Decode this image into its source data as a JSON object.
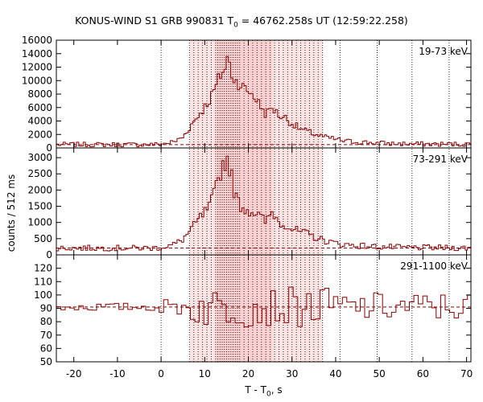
{
  "chart_data": {
    "type": "line",
    "title_main": "KONUS-WIND S1 GRB 990831 T",
    "title_sub": "0",
    "title_rest": " = 46762.258s UT (12:59:22.258)",
    "xlabel_main": "T - T",
    "xlabel_sub": "0",
    "xlabel_rest": ", s",
    "ylabel": "counts / 512 ms",
    "xlim": [
      -24,
      71
    ],
    "x_ticks": [
      -20,
      -10,
      0,
      10,
      20,
      30,
      40,
      50,
      60,
      70
    ],
    "bin_width_s": 0.512,
    "shaded_interval": [
      6.5,
      37.0
    ],
    "inner_shaded_interval": [
      12.5,
      25.5
    ],
    "vertical_markers": [
      0,
      6.5,
      7.5,
      8.5,
      9.5,
      10.5,
      11.5,
      12.5,
      13.0,
      13.5,
      14.0,
      14.5,
      15.0,
      15.5,
      16.0,
      16.5,
      17.0,
      17.5,
      18.0,
      19.0,
      20.0,
      21.0,
      22.0,
      23.0,
      24.0,
      25.0,
      26.0,
      27.0,
      28.0,
      29.0,
      30.0,
      31.0,
      32.0,
      33.0,
      34.0,
      35.0,
      36.0,
      37.0,
      41.0,
      49.5,
      57.5,
      66.0
    ],
    "panels": [
      {
        "label": "19-73 keV",
        "ylim": [
          0,
          16000
        ],
        "y_ticks": [
          0,
          2000,
          4000,
          6000,
          8000,
          10000,
          12000,
          14000,
          16000
        ],
        "background": 500,
        "profile": [
          [
            -24,
            500
          ],
          [
            -2,
            500
          ],
          [
            0,
            560
          ],
          [
            3,
            900
          ],
          [
            5,
            1600
          ],
          [
            7,
            3500
          ],
          [
            9,
            5200
          ],
          [
            11,
            7000
          ],
          [
            12.5,
            9000
          ],
          [
            13.5,
            10800
          ],
          [
            14.5,
            11500
          ],
          [
            15.3,
            13600
          ],
          [
            16,
            11200
          ],
          [
            17,
            10000
          ],
          [
            18,
            9500
          ],
          [
            19.5,
            8600
          ],
          [
            21,
            8000
          ],
          [
            22.5,
            6500
          ],
          [
            24,
            5000
          ],
          [
            25.5,
            6000
          ],
          [
            27,
            4800
          ],
          [
            28.5,
            4500
          ],
          [
            30,
            3600
          ],
          [
            32,
            2800
          ],
          [
            34,
            2300
          ],
          [
            36,
            1900
          ],
          [
            38,
            1500
          ],
          [
            40,
            1300
          ],
          [
            42,
            1000
          ],
          [
            45,
            900
          ],
          [
            48,
            800
          ],
          [
            52,
            650
          ],
          [
            56,
            600
          ],
          [
            60,
            580
          ],
          [
            65,
            560
          ],
          [
            71,
            550
          ]
        ],
        "noise_amp": 320,
        "noise_rel": 0.07
      },
      {
        "label": "73-291 keV",
        "ylim": [
          0,
          3300
        ],
        "y_ticks": [
          0,
          500,
          1000,
          1500,
          2000,
          2500,
          3000
        ],
        "background": 210,
        "profile": [
          [
            -24,
            210
          ],
          [
            -2,
            210
          ],
          [
            0,
            230
          ],
          [
            3,
            320
          ],
          [
            5,
            480
          ],
          [
            7,
            800
          ],
          [
            9,
            1150
          ],
          [
            11,
            1450
          ],
          [
            12,
            1800
          ],
          [
            13,
            2300
          ],
          [
            14,
            2750
          ],
          [
            15.3,
            3000
          ],
          [
            16,
            2500
          ],
          [
            17,
            1800
          ],
          [
            18,
            1550
          ],
          [
            19.5,
            1400
          ],
          [
            21,
            1350
          ],
          [
            22.5,
            1200
          ],
          [
            24,
            1000
          ],
          [
            25.5,
            1350
          ],
          [
            27,
            1000
          ],
          [
            28.5,
            950
          ],
          [
            30,
            800
          ],
          [
            32,
            700
          ],
          [
            34,
            620
          ],
          [
            36,
            500
          ],
          [
            38,
            420
          ],
          [
            40,
            360
          ],
          [
            42,
            320
          ],
          [
            45,
            290
          ],
          [
            50,
            250
          ],
          [
            55,
            230
          ],
          [
            62,
            220
          ],
          [
            71,
            215
          ]
        ],
        "noise_amp": 70,
        "noise_rel": 0.09
      },
      {
        "label": "291-1100 keV",
        "ylim": [
          50,
          130
        ],
        "y_ticks": [
          50,
          60,
          70,
          80,
          90,
          100,
          110,
          120
        ],
        "background": 91,
        "profile": [
          [
            -24,
            91
          ],
          [
            71,
            91
          ]
        ],
        "noise_amp": 8,
        "noise_rel": 0
      }
    ]
  }
}
